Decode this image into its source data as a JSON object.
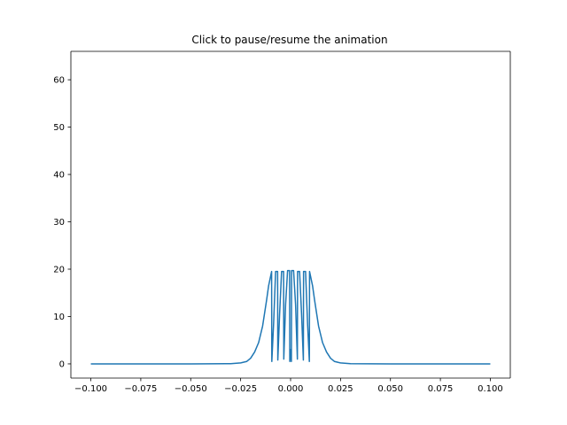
{
  "chart_data": {
    "type": "line",
    "title": "Click to pause/resume the animation",
    "xlabel": "",
    "ylabel": "",
    "xlim": [
      -0.11,
      0.11
    ],
    "ylim": [
      -3.0,
      66.0
    ],
    "grid": false,
    "xticks": [
      -0.1,
      -0.075,
      -0.05,
      -0.025,
      0.0,
      0.025,
      0.05,
      0.075,
      0.1
    ],
    "xtick_labels": [
      "−0.100",
      "−0.075",
      "−0.050",
      "−0.025",
      "0.000",
      "0.025",
      "0.050",
      "0.075",
      "0.100"
    ],
    "yticks": [
      0,
      10,
      20,
      30,
      40,
      50,
      60
    ],
    "ytick_labels": [
      "0",
      "10",
      "20",
      "30",
      "40",
      "50",
      "60"
    ],
    "series": [
      {
        "color": "#1f77b4",
        "x": [
          -0.1,
          -0.05,
          -0.03,
          -0.025,
          -0.022,
          -0.02,
          -0.018,
          -0.016,
          -0.014,
          -0.012,
          -0.011,
          -0.0095,
          -0.0094,
          -0.0085,
          -0.0075,
          -0.0065,
          -0.0064,
          -0.0055,
          -0.0045,
          -0.0035,
          -0.0034,
          -0.0025,
          -0.0015,
          -0.0005,
          -0.0004,
          0.0,
          0.0004,
          0.0005,
          0.0015,
          0.0025,
          0.0034,
          0.0035,
          0.0045,
          0.0055,
          0.0064,
          0.0065,
          0.0075,
          0.0085,
          0.0094,
          0.0095,
          0.011,
          0.012,
          0.014,
          0.016,
          0.018,
          0.02,
          0.022,
          0.025,
          0.03,
          0.05,
          0.1
        ],
        "y": [
          0.0,
          0.0,
          0.05,
          0.2,
          0.5,
          1.2,
          2.5,
          4.5,
          8.0,
          13.5,
          16.5,
          19.5,
          0.5,
          8.5,
          19.5,
          19.5,
          0.8,
          10.5,
          19.5,
          19.5,
          1.0,
          12.5,
          19.7,
          19.7,
          0.5,
          3.0,
          0.5,
          19.7,
          19.7,
          12.5,
          1.0,
          19.5,
          19.5,
          10.5,
          0.8,
          19.5,
          19.5,
          8.5,
          0.5,
          19.5,
          16.5,
          13.5,
          8.0,
          4.5,
          2.5,
          1.2,
          0.5,
          0.2,
          0.05,
          0.0,
          0.0
        ]
      }
    ]
  }
}
